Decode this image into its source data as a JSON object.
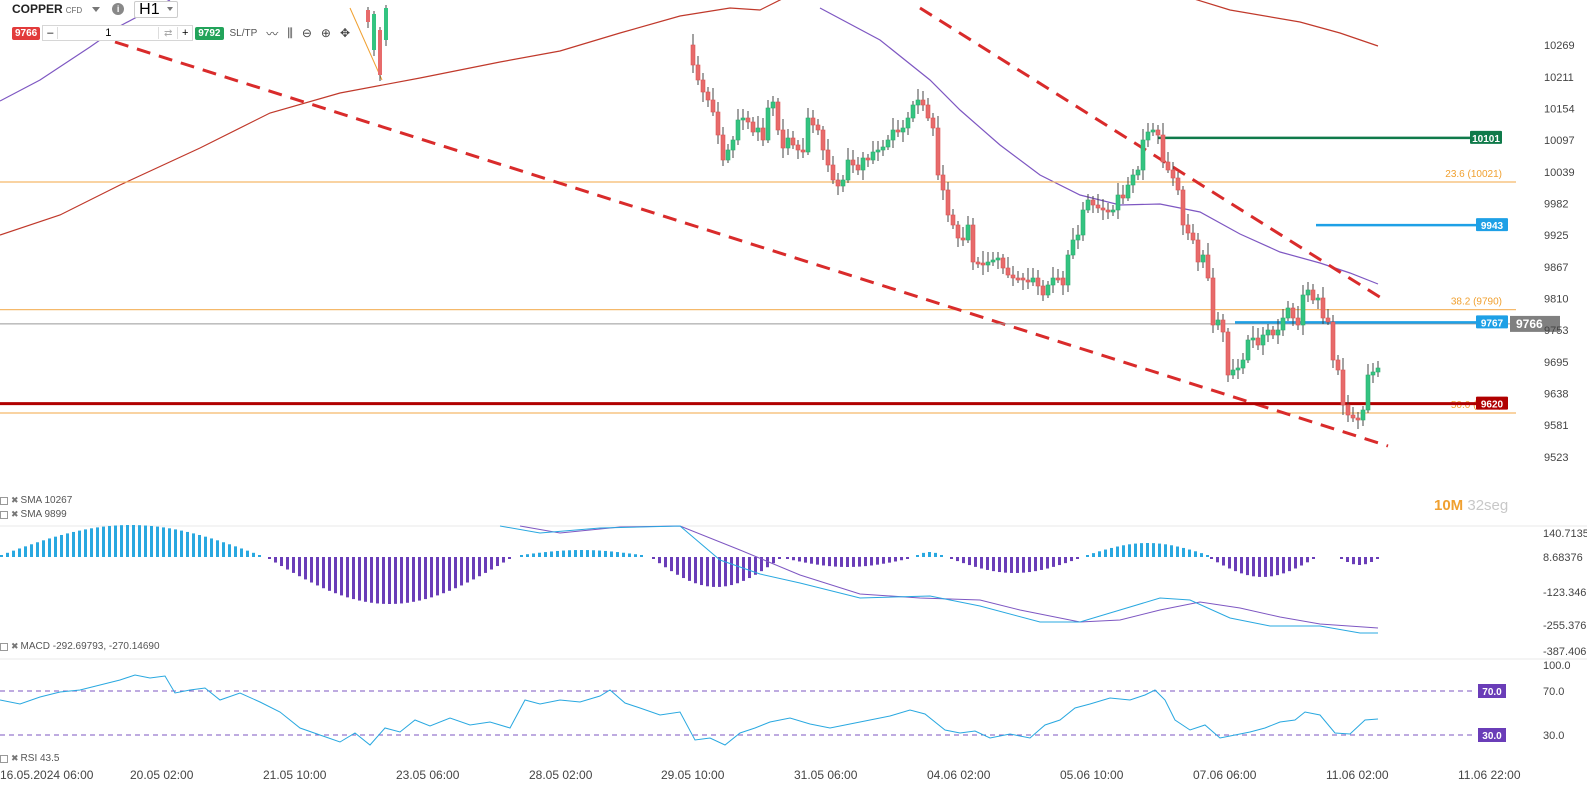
{
  "toolbar": {
    "symbol": "COPPER",
    "symbol_type": "CFD",
    "timeframe": "H1",
    "bid": "9766",
    "ask": "9792",
    "quantity": "1",
    "minus": "–",
    "plus": "+",
    "sltp": "SL/TP"
  },
  "timer": {
    "minutes": "10M",
    "seconds": "32seg"
  },
  "legend": {
    "sma1": "SMA 10267",
    "sma2": "SMA 9899",
    "macd": "MACD -292.69793, -270.14690",
    "rsi": "RSI 43.5"
  },
  "chart_data": {
    "type": "candlestick",
    "price_axis": {
      "min": 9523,
      "max": 10300,
      "ticks": [
        10269,
        10211,
        10154,
        10097,
        10039,
        9982,
        9925,
        9867,
        9810,
        9753,
        9695,
        9638,
        9581,
        9523
      ]
    },
    "x_axis_labels": [
      "16.05.2024 06:00",
      "20.05 02:00",
      "21.05 10:00",
      "23.05 06:00",
      "28.05 02:00",
      "29.05 10:00",
      "31.05 06:00",
      "04.06 02:00",
      "05.06 10:00",
      "07.06 06:00",
      "11.06 02:00",
      "11.06 22:00"
    ],
    "current_price": {
      "label": "9766",
      "value": 9766
    },
    "levels": [
      {
        "label": "10101",
        "value": 10101,
        "color": "#0f7a4a",
        "type": "horizontal-line"
      },
      {
        "label": "9943",
        "value": 9943,
        "color": "#1ea0e6",
        "type": "horizontal-line"
      },
      {
        "label": "9767",
        "value": 9767,
        "color": "#1ea0e6",
        "type": "horizontal-line"
      },
      {
        "label": "9620",
        "value": 9620,
        "color": "#b00000",
        "type": "horizontal-line"
      }
    ],
    "fibonacci": [
      {
        "label": "23.6 (10021)",
        "value": 10021
      },
      {
        "label": "38.2 (9790)",
        "value": 9790
      },
      {
        "label": "50.0 (9603)",
        "value": 9603
      }
    ],
    "sma_series": [
      {
        "name": "SMA 10267",
        "color": "#c0392b"
      },
      {
        "name": "SMA 9899",
        "color": "#7e57c2"
      }
    ],
    "macd": {
      "label": "MACD -292.69793, -270.14690",
      "ticks": [
        140.7135,
        8.68376,
        -123.346,
        -255.376,
        -387.406
      ],
      "macd_value": -292.69793,
      "signal_value": -270.1469
    },
    "rsi": {
      "label": "RSI 43.5",
      "value": 43.5,
      "ticks": [
        100.0,
        70.0,
        30.0
      ],
      "levels": [
        "70.0",
        "30.0"
      ]
    }
  }
}
